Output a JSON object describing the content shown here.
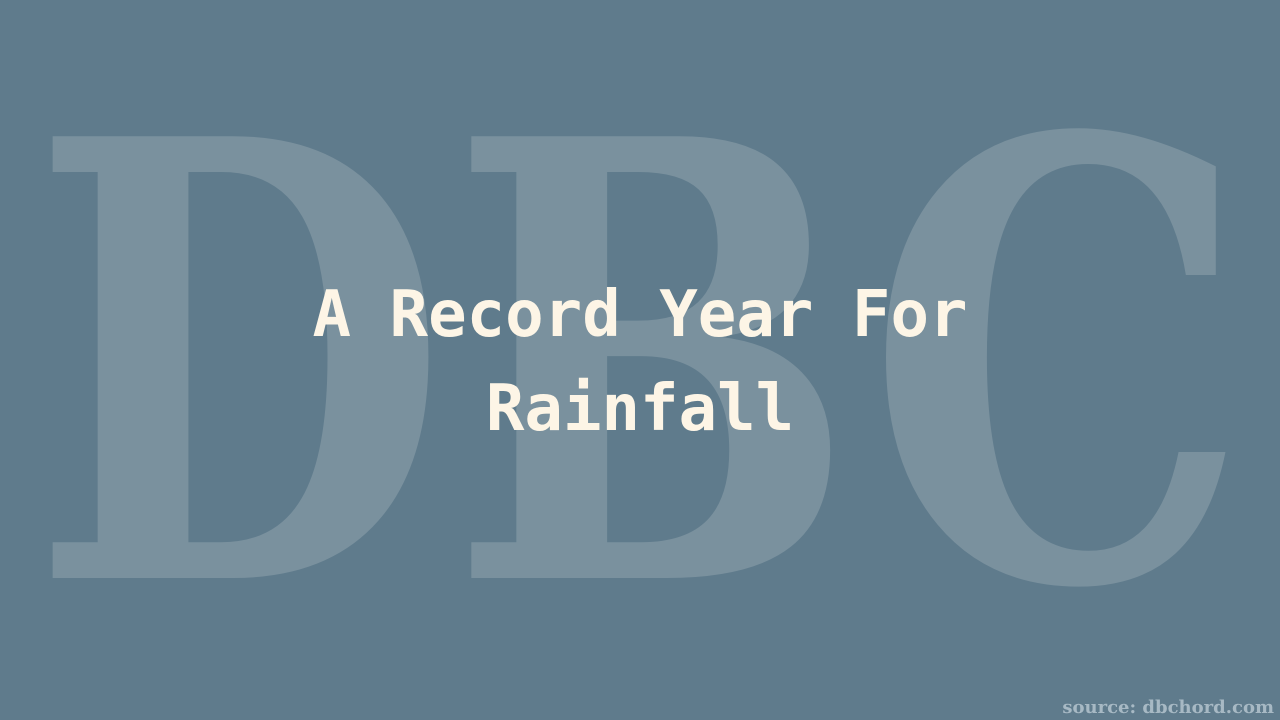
{
  "background_color": "#5f7b8c",
  "watermark": {
    "text": "DBC",
    "color": "#7a919e"
  },
  "title": {
    "line1": "A Record Year For",
    "line2": "Rainfall",
    "color": "#fdf5e6"
  },
  "footer": {
    "source": "source: dbchord.com"
  }
}
